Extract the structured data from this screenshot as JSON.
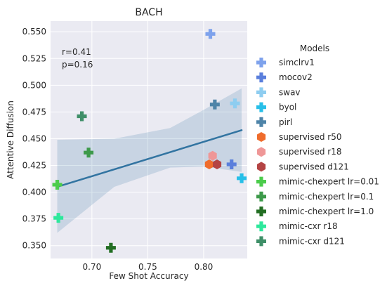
{
  "chart_data": {
    "type": "scatter",
    "title": "BACH",
    "xlabel": "Few Shot Accuracy",
    "ylabel": "Attentive Diffusion",
    "xlim": [
      0.663,
      0.839
    ],
    "ylim": [
      0.338,
      0.56
    ],
    "xticks": [
      0.7,
      0.75,
      0.8
    ],
    "xtick_labels": [
      "0.70",
      "0.75",
      "0.80"
    ],
    "yticks": [
      0.35,
      0.375,
      0.4,
      0.425,
      0.45,
      0.475,
      0.5,
      0.525,
      0.55
    ],
    "ytick_labels": [
      "0.350",
      "0.375",
      "0.400",
      "0.425",
      "0.450",
      "0.475",
      "0.500",
      "0.525",
      "0.550"
    ],
    "grid": true,
    "annotation": [
      "r=0.41",
      "p=0.16"
    ],
    "legend_title": "Models",
    "legend_position": "right, outside",
    "regression": {
      "color": "#3274a1",
      "start": [
        0.669,
        0.405
      ],
      "end": [
        0.834,
        0.458
      ],
      "band_lower": [
        [
          0.669,
          0.362
        ],
        [
          0.72,
          0.405
        ],
        [
          0.77,
          0.423
        ],
        [
          0.8,
          0.424
        ],
        [
          0.834,
          0.419
        ]
      ],
      "band_upper": [
        [
          0.669,
          0.449
        ],
        [
          0.72,
          0.45
        ],
        [
          0.77,
          0.46
        ],
        [
          0.8,
          0.477
        ],
        [
          0.834,
          0.497
        ]
      ]
    },
    "series": [
      {
        "name": "simclrv1",
        "marker": "plus",
        "color": "#7ea2ec",
        "x": 0.806,
        "y": 0.548
      },
      {
        "name": "mocov2",
        "marker": "plus",
        "color": "#5a7fdc",
        "x": 0.825,
        "y": 0.426
      },
      {
        "name": "swav",
        "marker": "plus",
        "color": "#8ecdf0",
        "x": 0.828,
        "y": 0.483
      },
      {
        "name": "byol",
        "marker": "plus",
        "color": "#27bfe8",
        "x": 0.834,
        "y": 0.413
      },
      {
        "name": "pirl",
        "marker": "plus",
        "color": "#4e84a8",
        "x": 0.81,
        "y": 0.482
      },
      {
        "name": "supervised r50",
        "marker": "hexagon",
        "color": "#ef6c2c",
        "x": 0.805,
        "y": 0.426
      },
      {
        "name": "supervised r18",
        "marker": "hexagon",
        "color": "#ef9797",
        "x": 0.808,
        "y": 0.434
      },
      {
        "name": "supervised d121",
        "marker": "hexagon",
        "color": "#b44444",
        "x": 0.812,
        "y": 0.426
      },
      {
        "name": "mimic-chexpert lr=0.01",
        "marker": "plus",
        "color": "#4ccc4c",
        "x": 0.669,
        "y": 0.407
      },
      {
        "name": "mimic-chexpert lr=0.1",
        "marker": "plus",
        "color": "#3d9a4a",
        "x": 0.697,
        "y": 0.437
      },
      {
        "name": "mimic-chexpert lr=1.0",
        "marker": "plus",
        "color": "#236e23",
        "x": 0.717,
        "y": 0.348
      },
      {
        "name": "mimic-cxr r18",
        "marker": "plus",
        "color": "#2ee89c",
        "x": 0.67,
        "y": 0.376
      },
      {
        "name": "mimic-cxr d121",
        "marker": "plus",
        "color": "#3f8f68",
        "x": 0.691,
        "y": 0.471
      }
    ]
  }
}
